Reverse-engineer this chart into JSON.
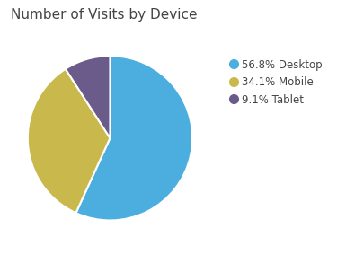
{
  "title": "Number of Visits by Device",
  "slices": [
    56.8,
    34.1,
    9.1
  ],
  "labels": [
    "56.8% Desktop",
    "34.1% Mobile",
    "9.1% Tablet"
  ],
  "colors": [
    "#4BAEDE",
    "#C9B84C",
    "#6B5B8B"
  ],
  "startangle": 90,
  "background_color": "#ffffff",
  "title_fontsize": 11,
  "title_color": "#444444",
  "legend_fontsize": 8.5,
  "counterclock": false
}
